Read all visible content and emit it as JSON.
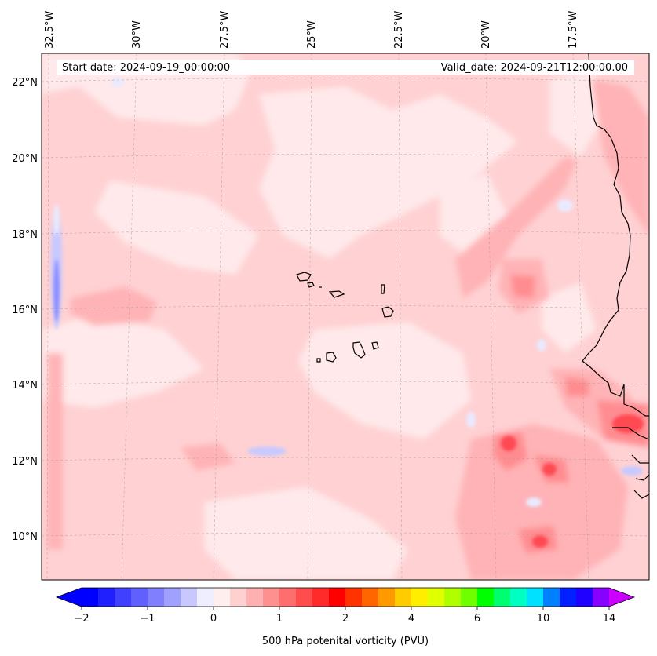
{
  "map": {
    "start_date_text": "Start date: 2024-09-19_00:00:00",
    "valid_date_text": "Valid_date: 2024-09-21T12:00:00.00",
    "lon_labels": [
      "32.5°W",
      "30°W",
      "27.5°W",
      "25°W",
      "22.5°W",
      "20°W",
      "17.5°W"
    ],
    "lat_labels": [
      "22°N",
      "20°N",
      "18°N",
      "16°N",
      "14°N",
      "12°N",
      "10°N"
    ],
    "gridlines": true,
    "colors": {
      "very_light_pink": "#ffe9ea",
      "light_pink": "#ffd1d3",
      "pink": "#ffb3b6",
      "salmon": "#ff8c90",
      "red": "#ff4a52",
      "light_blue": "#e9eaff",
      "blue": "#c7c9ff",
      "mid_blue": "#8a8dff",
      "coast": "#000000"
    }
  },
  "colorbar": {
    "label": "500 hPa potenital vorticity (PVU)",
    "ticks": [
      "−2",
      "−1",
      "0",
      "1",
      "2",
      "4",
      "6",
      "10",
      "14"
    ],
    "colors": [
      "#0000ff",
      "#2020ff",
      "#4040ff",
      "#6060ff",
      "#8080ff",
      "#a0a0ff",
      "#c8c8ff",
      "#eeeeff",
      "#ffeeee",
      "#ffd0d0",
      "#ffb0b0",
      "#ff9090",
      "#ff6e6e",
      "#ff4c4c",
      "#ff2a2a",
      "#ff0000",
      "#ff3300",
      "#ff6600",
      "#ff9900",
      "#ffcc00",
      "#ffee00",
      "#e0ff00",
      "#b0ff00",
      "#70ff00",
      "#00ff00",
      "#00ff70",
      "#00ffc0",
      "#00e0ff",
      "#0080ff",
      "#0020ff",
      "#2000ff",
      "#8800ff"
    ],
    "extend_low_color": "#0000ff",
    "extend_high_color": "#cc00ff"
  }
}
